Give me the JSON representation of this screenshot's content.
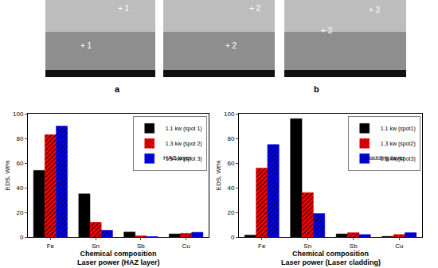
{
  "figure": {
    "images": [
      {
        "markers": [
          "+ 1",
          "+ 1"
        ]
      },
      {
        "markers": [
          "+ 2",
          "+ 2"
        ]
      },
      {
        "markers": [
          "+ 3",
          "+ 3"
        ]
      }
    ],
    "panel_labels": [
      "a",
      "b"
    ]
  },
  "chart_data": [
    {
      "type": "bar",
      "title": "Laser power (HAZ layer)",
      "x_label": "Chemical composition",
      "y_label": "EDS, Wt%",
      "annotations": [
        "HAZ layer"
      ],
      "categories": [
        "Fe",
        "Sn",
        "Sb",
        "Cu"
      ],
      "series": [
        {
          "name": "1.1 kw (spot 1)",
          "color": "#000000",
          "marker": "solid",
          "values": [
            54,
            35,
            4,
            2.5
          ]
        },
        {
          "name": "1.3 kw (spot 2)",
          "color": "#ff0000",
          "marker": "hatched",
          "values": [
            83,
            12,
            1,
            3
          ]
        },
        {
          "name": "1.5 kw (spot 3)",
          "color": "#0000ff",
          "marker": "hatched",
          "values": [
            90,
            5.5,
            0.3,
            3.8
          ]
        }
      ],
      "ylim": [
        0,
        100
      ],
      "yticks": [
        0,
        20,
        40,
        60,
        80,
        100
      ],
      "grid": false,
      "legend": "top right"
    },
    {
      "type": "bar",
      "title": "Laser power (Laser cladding)",
      "x_label": "Chemical composition",
      "y_label": "EDS, Wt%",
      "annotations": [
        "cladding layer"
      ],
      "categories": [
        "Fe",
        "Sn",
        "Sb",
        "Cu"
      ],
      "series": [
        {
          "name": "1.1 kw (spot1)",
          "color": "#000000",
          "marker": "solid",
          "values": [
            1.5,
            96,
            2.5,
            0.5
          ]
        },
        {
          "name": "1.3 kw (spot2)",
          "color": "#ff0000",
          "marker": "hatched",
          "values": [
            56,
            36,
            3.5,
            2
          ]
        },
        {
          "name": "1.5 kw (spot3)",
          "color": "#0000ff",
          "marker": "hatched",
          "values": [
            75,
            19,
            2,
            3.5
          ]
        }
      ],
      "ylim": [
        0,
        100
      ],
      "yticks": [
        0,
        20,
        40,
        60,
        80,
        100
      ],
      "grid": false,
      "legend": "top right"
    }
  ]
}
